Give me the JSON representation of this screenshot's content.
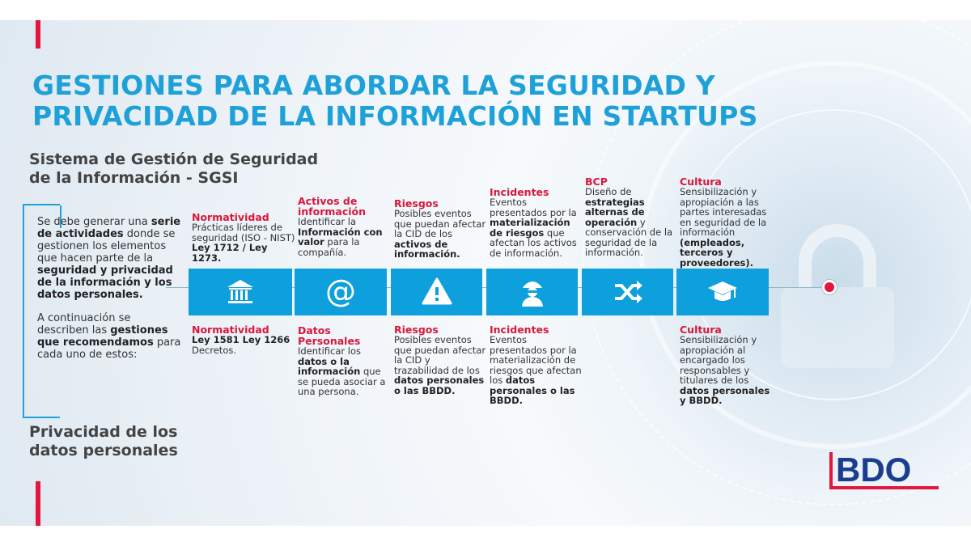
{
  "title": [
    "GESTIONES PARA ABORDAR LA SEGURIDAD Y",
    "PRIVACIDAD DE LA INFORMACIÓN EN STARTUPS"
  ],
  "sections": {
    "sgsi": [
      "Sistema de Gestión de Seguridad",
      "de la Información - SGSI"
    ],
    "privacy": [
      "Privacidad de los",
      "datos personales"
    ]
  },
  "intro": {
    "p1": [
      {
        "t": "Se debe generar una "
      },
      {
        "b": "serie de actividades"
      },
      {
        "t": " donde se gestionen los elementos que hacen parte de la "
      },
      {
        "b": "seguridad y privacidad de la información y  los datos personales."
      }
    ],
    "p2": [
      {
        "t": "A continuación se describen las "
      },
      {
        "b": "gestiones que recomendamos"
      },
      {
        "t": " para cada uno de estos:"
      }
    ]
  },
  "steps": [
    {
      "icon": "bank-icon",
      "top": {
        "title": "Normatividad",
        "body": [
          {
            "t": "Prácticas líderes de seguridad (ISO - NIST) "
          },
          {
            "b": "Ley 1712 / Ley 1273."
          }
        ]
      },
      "bottom": {
        "title": "Normatividad",
        "body": [
          {
            "b": "Ley 1581 Ley 1266"
          },
          {
            "t": " Decretos."
          }
        ]
      }
    },
    {
      "icon": "at-sign-icon",
      "top": {
        "title": "Activos de información",
        "body": [
          {
            "t": "Identificar la "
          },
          {
            "b": "Información con valor"
          },
          {
            "t": " para la compañía."
          }
        ]
      },
      "bottom": {
        "title": "Datos Personales",
        "body": [
          {
            "t": "Identificar los "
          },
          {
            "b": "datos o la información"
          },
          {
            "t": " que se pueda asociar a una persona."
          }
        ]
      }
    },
    {
      "icon": "warning-icon",
      "top": {
        "title": "Riesgos",
        "body": [
          {
            "t": "Posibles eventos que puedan afectar la CID de los "
          },
          {
            "b": "activos de información."
          }
        ]
      },
      "bottom": {
        "title": "Riesgos",
        "body": [
          {
            "t": "Posibles eventos que puedan afectar la CID y trazabilidad  de los "
          },
          {
            "b": "datos personales o las BBDD."
          }
        ]
      }
    },
    {
      "icon": "spy-icon",
      "top": {
        "title": "Incidentes",
        "body": [
          {
            "t": "Eventos presentados por la "
          },
          {
            "b": "materialización de riesgos"
          },
          {
            "t": " que afectan los activos de información."
          }
        ]
      },
      "bottom": {
        "title": "Incidentes",
        "body": [
          {
            "t": "Eventos presentados por la materialización de riesgos que afectan los "
          },
          {
            "b": "datos personales o  las BBDD."
          }
        ]
      }
    },
    {
      "icon": "shuffle-icon",
      "top": {
        "title": "BCP",
        "body": [
          {
            "t": "Diseño de "
          },
          {
            "b": "estrategias alternas de operación"
          },
          {
            "t": " y conservación de la seguridad de la información."
          }
        ]
      },
      "bottom": null
    },
    {
      "icon": "graduation-cap-icon",
      "top": {
        "title": "Cultura",
        "body": [
          {
            "t": "Sensibilización y apropiación a las partes interesadas en seguridad de la información "
          },
          {
            "b": "(empleados, terceros  y  proveedores)."
          }
        ]
      },
      "bottom": {
        "title": "Cultura",
        "body": [
          {
            "t": "Sensibilización y apropiación al encargado los responsables y titulares de los "
          },
          {
            "b": "datos personales y  BBDD."
          }
        ]
      }
    }
  ],
  "logo": "BDO",
  "colors": {
    "accent_blue": "#0ea0dc",
    "title_blue": "#1ea1d8",
    "red": "#e3173e",
    "logo_blue": "#1b3d8f"
  }
}
